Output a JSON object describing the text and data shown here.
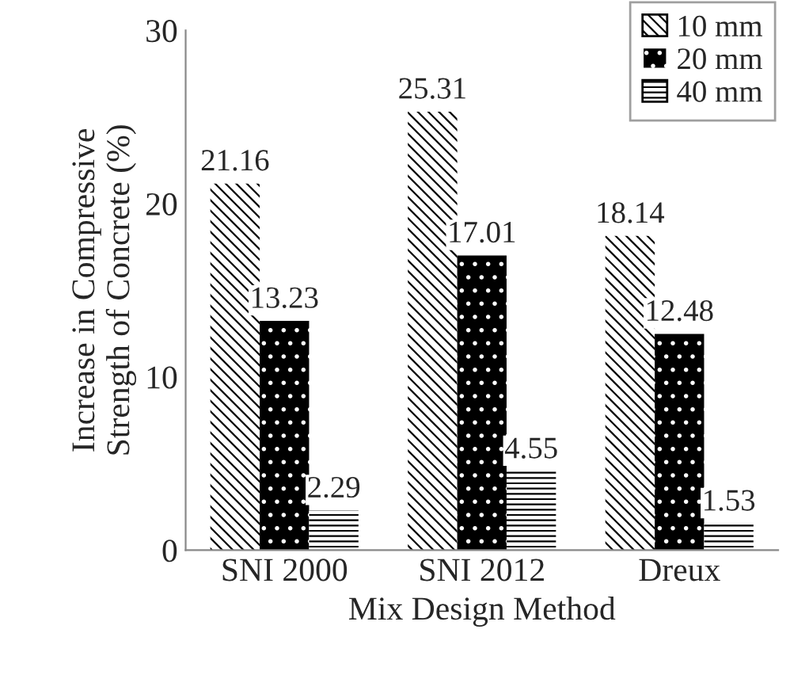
{
  "chart_data": {
    "type": "bar",
    "xlabel": "Mix Design Method",
    "ylabel": "Increase in Compressive\nStrength of Concrete (%)",
    "categories": [
      "SNI 2000",
      "SNI 2012",
      "Dreux"
    ],
    "series": [
      {
        "name": "10 mm",
        "color": "#ffffff",
        "values": [
          21.16,
          25.31,
          18.14
        ]
      },
      {
        "name": "20 mm",
        "color": "#000000",
        "values": [
          13.23,
          17.01,
          12.48
        ]
      },
      {
        "name": "40 mm",
        "color": "#ffffff",
        "values": [
          2.29,
          4.55,
          1.53
        ]
      }
    ],
    "ylim": [
      0,
      30
    ],
    "yticks": [
      0,
      10,
      20,
      30
    ],
    "grid": false,
    "legend": "top right",
    "data_labels": true
  }
}
